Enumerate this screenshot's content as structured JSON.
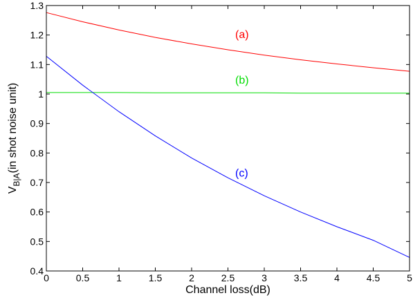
{
  "chart_data": {
    "type": "line",
    "xlabel": "Channel loss(dB)",
    "ylabel": {
      "main": "V",
      "sub": "B|A",
      "rest": "(in shot noise unit)"
    },
    "xlim": [
      0,
      5
    ],
    "ylim": [
      0.4,
      1.3
    ],
    "xticks": [
      "0",
      "0.5",
      "1",
      "1.5",
      "2",
      "2.5",
      "3",
      "3.5",
      "4",
      "4.5",
      "5"
    ],
    "yticks": [
      "0.4",
      "0.5",
      "0.6",
      "0.7",
      "0.8",
      "0.9",
      "1",
      "1.1",
      "1.2",
      "1.3"
    ],
    "grid": false,
    "series": [
      {
        "name": "(a)",
        "color": "#ff0000",
        "x": [
          0,
          0.5,
          1,
          1.5,
          2,
          2.5,
          3,
          3.5,
          4,
          4.5,
          5
        ],
        "y": [
          1.276,
          1.245,
          1.217,
          1.192,
          1.17,
          1.15,
          1.132,
          1.116,
          1.102,
          1.089,
          1.077
        ],
        "label_at": [
          2.6,
          1.19
        ]
      },
      {
        "name": "(b)",
        "color": "#00dd00",
        "x": [
          0,
          0.5,
          1,
          1.5,
          2,
          2.5,
          3,
          3.5,
          4,
          4.5,
          5
        ],
        "y": [
          1.005,
          1.005,
          1.005,
          1.004,
          1.004,
          1.004,
          1.004,
          1.003,
          1.003,
          1.003,
          1.003
        ],
        "label_at": [
          2.6,
          1.035
        ]
      },
      {
        "name": "(c)",
        "color": "#0000ff",
        "x": [
          0,
          0.5,
          1,
          1.5,
          2,
          2.5,
          3,
          3.5,
          4,
          4.5,
          5
        ],
        "y": [
          1.128,
          1.03,
          0.94,
          0.858,
          0.783,
          0.716,
          0.655,
          0.6,
          0.55,
          0.504,
          0.446
        ],
        "label_at": [
          2.6,
          0.72
        ]
      }
    ]
  }
}
